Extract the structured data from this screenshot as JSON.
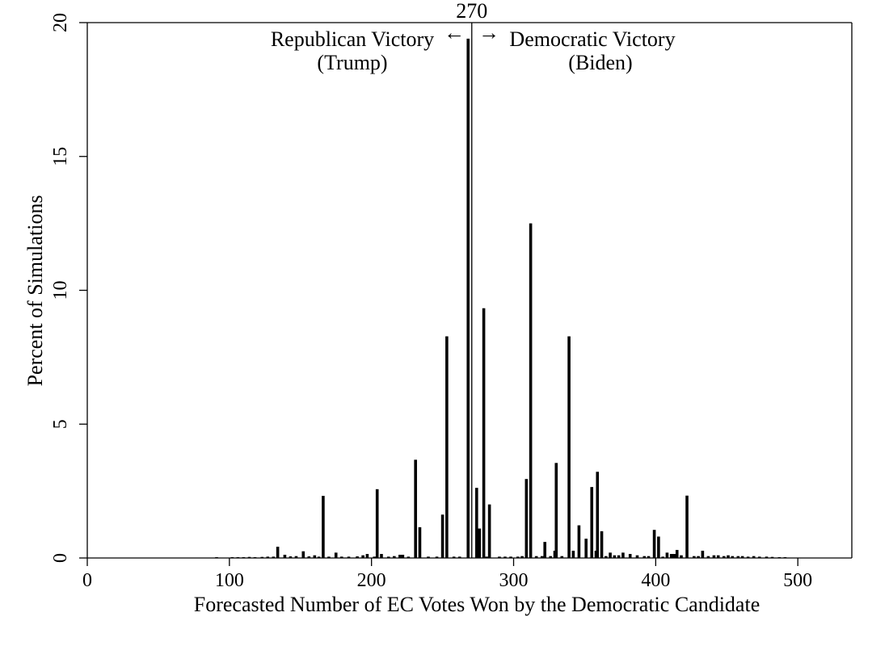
{
  "chart_data": {
    "type": "bar",
    "title": "",
    "xlabel": "Forecasted Number of EC Votes Won by the Democratic Candidate",
    "ylabel": "Percent of Simulations",
    "xlim": [
      0,
      538
    ],
    "ylim": [
      0,
      20
    ],
    "x_ticks": [
      0,
      100,
      200,
      300,
      400,
      500
    ],
    "y_ticks": [
      0,
      5,
      10,
      15,
      20
    ],
    "grid": false,
    "legend": "none",
    "bar_color": "#000000",
    "threshold": {
      "value": 270,
      "label": "270"
    },
    "annotations": {
      "left": {
        "line1": "Republican Victory",
        "line2": "(Trump)",
        "arrow": "←"
      },
      "right": {
        "line1": "Democratic Victory",
        "line2": "(Biden)",
        "arrow": "→"
      }
    },
    "bars": [
      {
        "x": 91,
        "y": 0.02
      },
      {
        "x": 102,
        "y": 0.03
      },
      {
        "x": 106,
        "y": 0.03
      },
      {
        "x": 110,
        "y": 0.03
      },
      {
        "x": 114,
        "y": 0.04
      },
      {
        "x": 118,
        "y": 0.03
      },
      {
        "x": 123,
        "y": 0.04
      },
      {
        "x": 127,
        "y": 0.05
      },
      {
        "x": 131,
        "y": 0.05
      },
      {
        "x": 134,
        "y": 0.42
      },
      {
        "x": 139,
        "y": 0.12
      },
      {
        "x": 143,
        "y": 0.06
      },
      {
        "x": 147,
        "y": 0.07
      },
      {
        "x": 152,
        "y": 0.25
      },
      {
        "x": 156,
        "y": 0.06
      },
      {
        "x": 160,
        "y": 0.1
      },
      {
        "x": 163,
        "y": 0.05
      },
      {
        "x": 166,
        "y": 2.32
      },
      {
        "x": 170,
        "y": 0.05
      },
      {
        "x": 175,
        "y": 0.2
      },
      {
        "x": 179,
        "y": 0.05
      },
      {
        "x": 184,
        "y": 0.05
      },
      {
        "x": 190,
        "y": 0.06
      },
      {
        "x": 194,
        "y": 0.1
      },
      {
        "x": 197,
        "y": 0.15
      },
      {
        "x": 202,
        "y": 0.05
      },
      {
        "x": 204,
        "y": 2.57
      },
      {
        "x": 207,
        "y": 0.15
      },
      {
        "x": 212,
        "y": 0.05
      },
      {
        "x": 216,
        "y": 0.07
      },
      {
        "x": 220,
        "y": 0.12
      },
      {
        "x": 222,
        "y": 0.12
      },
      {
        "x": 226,
        "y": 0.05
      },
      {
        "x": 231,
        "y": 3.67
      },
      {
        "x": 234,
        "y": 1.15
      },
      {
        "x": 240,
        "y": 0.05
      },
      {
        "x": 246,
        "y": 0.05
      },
      {
        "x": 250,
        "y": 1.62
      },
      {
        "x": 253,
        "y": 8.28
      },
      {
        "x": 258,
        "y": 0.05
      },
      {
        "x": 262,
        "y": 0.05
      },
      {
        "x": 268,
        "y": 19.4
      },
      {
        "x": 274,
        "y": 2.62
      },
      {
        "x": 276,
        "y": 1.1
      },
      {
        "x": 279,
        "y": 9.33
      },
      {
        "x": 281,
        "y": 0.05
      },
      {
        "x": 283,
        "y": 2.0
      },
      {
        "x": 290,
        "y": 0.05
      },
      {
        "x": 294,
        "y": 0.05
      },
      {
        "x": 298,
        "y": 0.05
      },
      {
        "x": 303,
        "y": 0.05
      },
      {
        "x": 306,
        "y": 0.07
      },
      {
        "x": 309,
        "y": 2.95
      },
      {
        "x": 312,
        "y": 12.5
      },
      {
        "x": 316,
        "y": 0.07
      },
      {
        "x": 320,
        "y": 0.07
      },
      {
        "x": 322,
        "y": 0.6
      },
      {
        "x": 326,
        "y": 0.07
      },
      {
        "x": 329,
        "y": 0.27
      },
      {
        "x": 330,
        "y": 3.55
      },
      {
        "x": 334,
        "y": 0.07
      },
      {
        "x": 339,
        "y": 8.28
      },
      {
        "x": 342,
        "y": 0.27
      },
      {
        "x": 346,
        "y": 1.22
      },
      {
        "x": 351,
        "y": 0.72
      },
      {
        "x": 355,
        "y": 2.65
      },
      {
        "x": 358,
        "y": 0.27
      },
      {
        "x": 359,
        "y": 3.22
      },
      {
        "x": 362,
        "y": 1.0
      },
      {
        "x": 365,
        "y": 0.07
      },
      {
        "x": 368,
        "y": 0.2
      },
      {
        "x": 371,
        "y": 0.1
      },
      {
        "x": 374,
        "y": 0.1
      },
      {
        "x": 377,
        "y": 0.2
      },
      {
        "x": 382,
        "y": 0.15
      },
      {
        "x": 387,
        "y": 0.1
      },
      {
        "x": 392,
        "y": 0.07
      },
      {
        "x": 395,
        "y": 0.07
      },
      {
        "x": 399,
        "y": 1.05
      },
      {
        "x": 402,
        "y": 0.8
      },
      {
        "x": 405,
        "y": 0.05
      },
      {
        "x": 408,
        "y": 0.2
      },
      {
        "x": 411,
        "y": 0.15
      },
      {
        "x": 413,
        "y": 0.15
      },
      {
        "x": 415,
        "y": 0.3
      },
      {
        "x": 418,
        "y": 0.1
      },
      {
        "x": 422,
        "y": 2.33
      },
      {
        "x": 427,
        "y": 0.07
      },
      {
        "x": 430,
        "y": 0.07
      },
      {
        "x": 433,
        "y": 0.27
      },
      {
        "x": 437,
        "y": 0.07
      },
      {
        "x": 441,
        "y": 0.1
      },
      {
        "x": 444,
        "y": 0.1
      },
      {
        "x": 448,
        "y": 0.07
      },
      {
        "x": 451,
        "y": 0.1
      },
      {
        "x": 454,
        "y": 0.07
      },
      {
        "x": 458,
        "y": 0.07
      },
      {
        "x": 461,
        "y": 0.07
      },
      {
        "x": 465,
        "y": 0.05
      },
      {
        "x": 469,
        "y": 0.07
      },
      {
        "x": 473,
        "y": 0.05
      },
      {
        "x": 478,
        "y": 0.05
      },
      {
        "x": 482,
        "y": 0.04
      },
      {
        "x": 487,
        "y": 0.03
      },
      {
        "x": 491,
        "y": 0.03
      }
    ]
  }
}
